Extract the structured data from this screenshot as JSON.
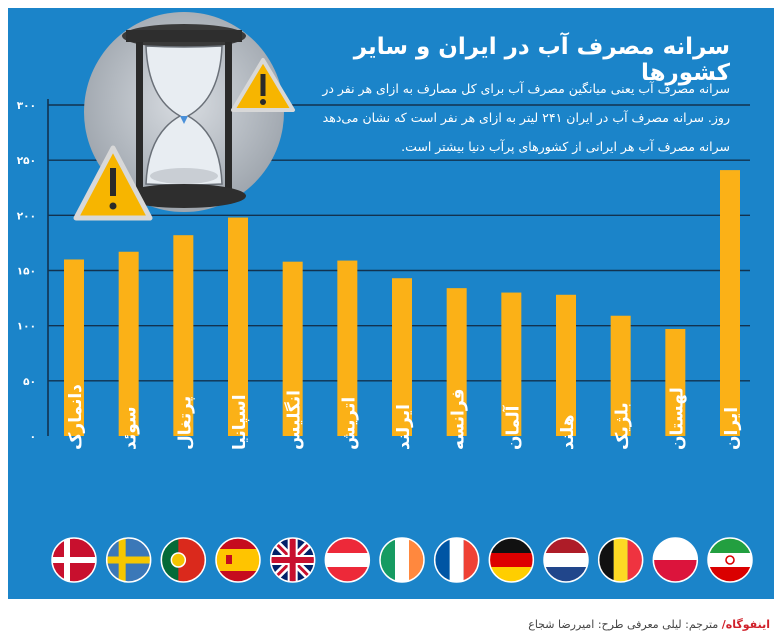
{
  "title": "سرانه مصرف آب در ایران و سایر کشورها",
  "subtitle": "سرانه مصرف آب یعنی میانگین مصرف آب برای کل مصارف به ازای هر نفر در روز. سرانه مصرف آب در ایران ۲۴۱ لیتر به ازای هر نفر است که نشان می‌دهد سرانه مصرف آب هر ایرانی از کشورهای پرآب دنیا بیشتر است.",
  "footer": {
    "brand": "اینفوگاه/",
    "credits": "مترجم: لیلی معرفی     طرح: امیررضا شجاع"
  },
  "colors": {
    "background": "#1b84c9",
    "bar": "#fbb117",
    "text": "#ffffff"
  },
  "icons": [
    "hourglass-icon",
    "warning-icon",
    "warning-icon"
  ],
  "chart_data": {
    "type": "bar",
    "categories": [
      "دانمارک",
      "سوئد",
      "پرتغال",
      "اسپانیا",
      "انگلیس",
      "اتریش",
      "ایرلند",
      "فرانسه",
      "آلمان",
      "هلند",
      "بلژیک",
      "لهستان",
      "ایران"
    ],
    "values": [
      160,
      167,
      182,
      198,
      158,
      159,
      143,
      134,
      130,
      128,
      109,
      97,
      241
    ],
    "ylim": [
      0,
      300
    ],
    "yticks": [
      0,
      50,
      100,
      150,
      200,
      250,
      300
    ],
    "ytick_labels": [
      "۰",
      "۵۰",
      "۱۰۰",
      "۱۵۰",
      "۲۰۰",
      "۲۵۰",
      "۳۰۰"
    ],
    "grid": true,
    "flags": [
      "flag-denmark",
      "flag-sweden",
      "flag-portugal",
      "flag-spain",
      "flag-uk",
      "flag-austria",
      "flag-ireland",
      "flag-france",
      "flag-germany",
      "flag-netherlands",
      "flag-belgium",
      "flag-poland",
      "flag-iran"
    ]
  }
}
